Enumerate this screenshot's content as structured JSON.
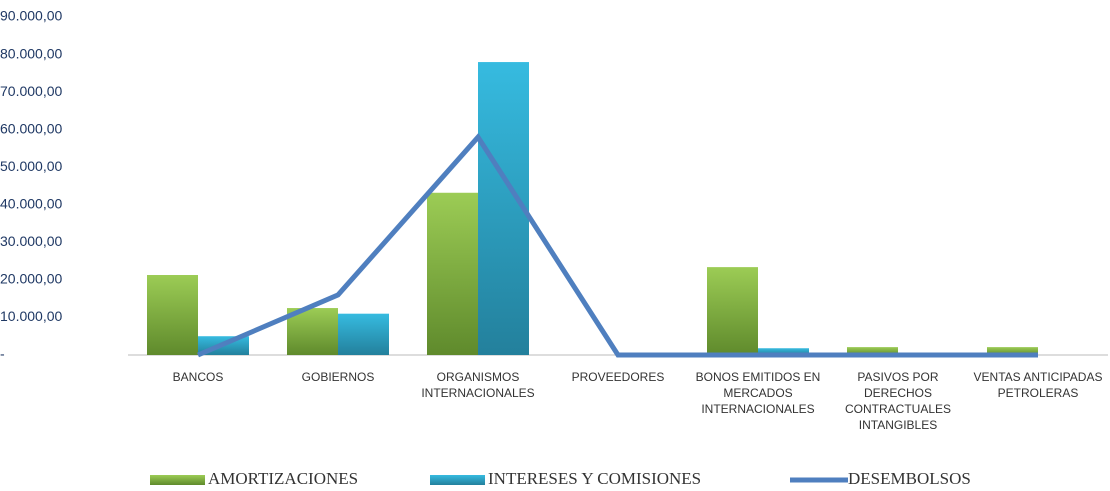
{
  "chart_data": {
    "type": "bar_line",
    "categories": [
      "BANCOS",
      "GOBIERNOS",
      "ORGANISMOS INTERNACIONALES",
      "PROVEEDORES",
      "BONOS EMITIDOS EN MERCADOS INTERNACIONALES",
      "PASIVOS POR DERECHOS CONTRACTUALES INTANGIBLES",
      "VENTAS ANTICIPADAS PETROLERAS"
    ],
    "series": [
      {
        "name": "AMORTIZACIONES",
        "kind": "bar",
        "color": "#7fb03f",
        "values": [
          21300,
          12500,
          43200,
          0,
          23400,
          2100,
          2100
        ]
      },
      {
        "name": "INTERESES Y COMISIONES",
        "kind": "bar",
        "color": "#2fa9cc",
        "values": [
          5000,
          11000,
          78000,
          0,
          1800,
          300,
          0
        ]
      },
      {
        "name": "DESEMBOLSOS",
        "kind": "line",
        "color": "#4f7fbf",
        "values": [
          0,
          16000,
          58000,
          0,
          0,
          0,
          0
        ]
      }
    ],
    "ylim": [
      0,
      90000
    ],
    "yticks": [
      {
        "value": 0,
        "label": "-"
      },
      {
        "value": 10000,
        "label": "10.000,00"
      },
      {
        "value": 20000,
        "label": "20.000,00"
      },
      {
        "value": 30000,
        "label": "30.000,00"
      },
      {
        "value": 40000,
        "label": "40.000,00"
      },
      {
        "value": 50000,
        "label": "50.000,00"
      },
      {
        "value": 60000,
        "label": "60.000,00"
      },
      {
        "value": 70000,
        "label": "70.000,00"
      },
      {
        "value": 80000,
        "label": "80.000,00"
      },
      {
        "value": 90000,
        "label": "90.000,00"
      }
    ],
    "grid": false,
    "legend": "bottom"
  }
}
